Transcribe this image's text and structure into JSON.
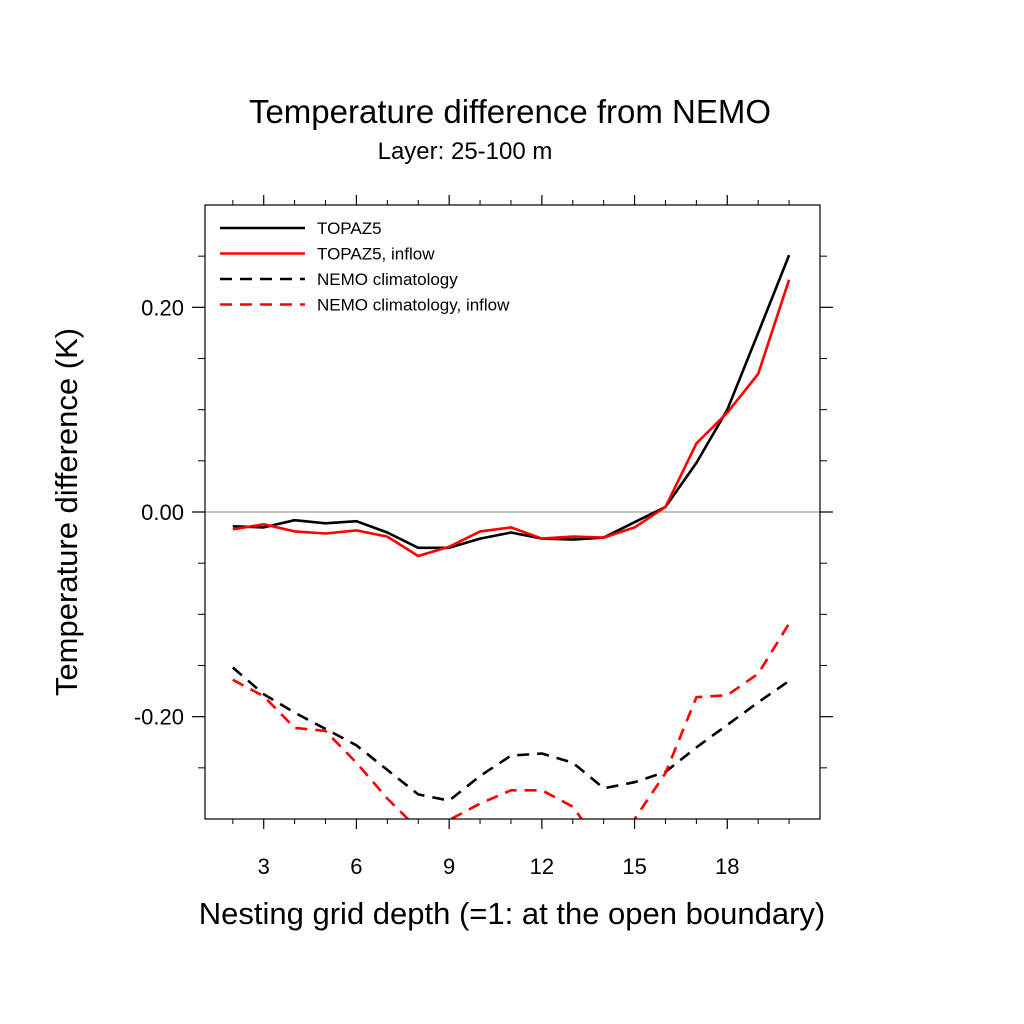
{
  "chart_data": {
    "type": "line",
    "title": "Temperature difference from NEMO",
    "subtitle": "Layer: 25-100 m",
    "xlabel": "Nesting grid depth (=1: at the open boundary)",
    "ylabel": "Temperature difference (K)",
    "xlim": [
      1.1,
      21.0
    ],
    "ylim": [
      -0.3,
      0.3
    ],
    "x_ticks": [
      3,
      6,
      9,
      12,
      15,
      18
    ],
    "x_tick_labels": [
      "3",
      "6",
      "9",
      "12",
      "15",
      "18"
    ],
    "x_minor_ticks": [
      2,
      4,
      5,
      7,
      8,
      10,
      11,
      13,
      14,
      16,
      17,
      19,
      20
    ],
    "y_ticks": [
      -0.2,
      0.0,
      0.2
    ],
    "y_tick_labels": [
      "-0.20",
      "0.00",
      "0.20"
    ],
    "y_minor_ticks": [
      -0.25,
      -0.15,
      -0.1,
      -0.05,
      0.05,
      0.1,
      0.15,
      0.25
    ],
    "zero_line": true,
    "grid": false,
    "legend_position": "top-left",
    "x": [
      2,
      3,
      4,
      5,
      6,
      7,
      8,
      9,
      10,
      11,
      12,
      13,
      14,
      15,
      16,
      17,
      18,
      19,
      20
    ],
    "series": [
      {
        "name": "TOPAZ5",
        "color": "#000000",
        "dash": "solid",
        "values": [
          -0.014,
          -0.015,
          -0.008,
          -0.011,
          -0.009,
          -0.02,
          -0.035,
          -0.035,
          -0.026,
          -0.02,
          -0.026,
          -0.027,
          -0.025,
          -0.01,
          0.005,
          0.048,
          0.1,
          0.175,
          0.251
        ]
      },
      {
        "name": "TOPAZ5, inflow",
        "color": "#ff0000",
        "dash": "solid",
        "values": [
          -0.017,
          -0.012,
          -0.019,
          -0.021,
          -0.018,
          -0.024,
          -0.043,
          -0.034,
          -0.019,
          -0.015,
          -0.026,
          -0.024,
          -0.025,
          -0.015,
          0.005,
          0.067,
          0.097,
          0.135,
          0.227
        ]
      },
      {
        "name": "NEMO climatology",
        "color": "#000000",
        "dash": "dashed",
        "values": [
          -0.152,
          -0.178,
          -0.196,
          -0.212,
          -0.228,
          -0.252,
          -0.276,
          -0.282,
          -0.258,
          -0.238,
          -0.236,
          -0.245,
          -0.27,
          -0.264,
          -0.254,
          -0.23,
          -0.208,
          -0.186,
          -0.165
        ]
      },
      {
        "name": "NEMO climatology, inflow",
        "color": "#ff0000",
        "dash": "dashed",
        "values": [
          -0.164,
          -0.18,
          -0.211,
          -0.214,
          -0.245,
          -0.28,
          -0.31,
          -0.301,
          -0.285,
          -0.272,
          -0.272,
          -0.288,
          -0.33,
          -0.3,
          -0.255,
          -0.181,
          -0.179,
          -0.158,
          -0.109
        ]
      }
    ]
  }
}
